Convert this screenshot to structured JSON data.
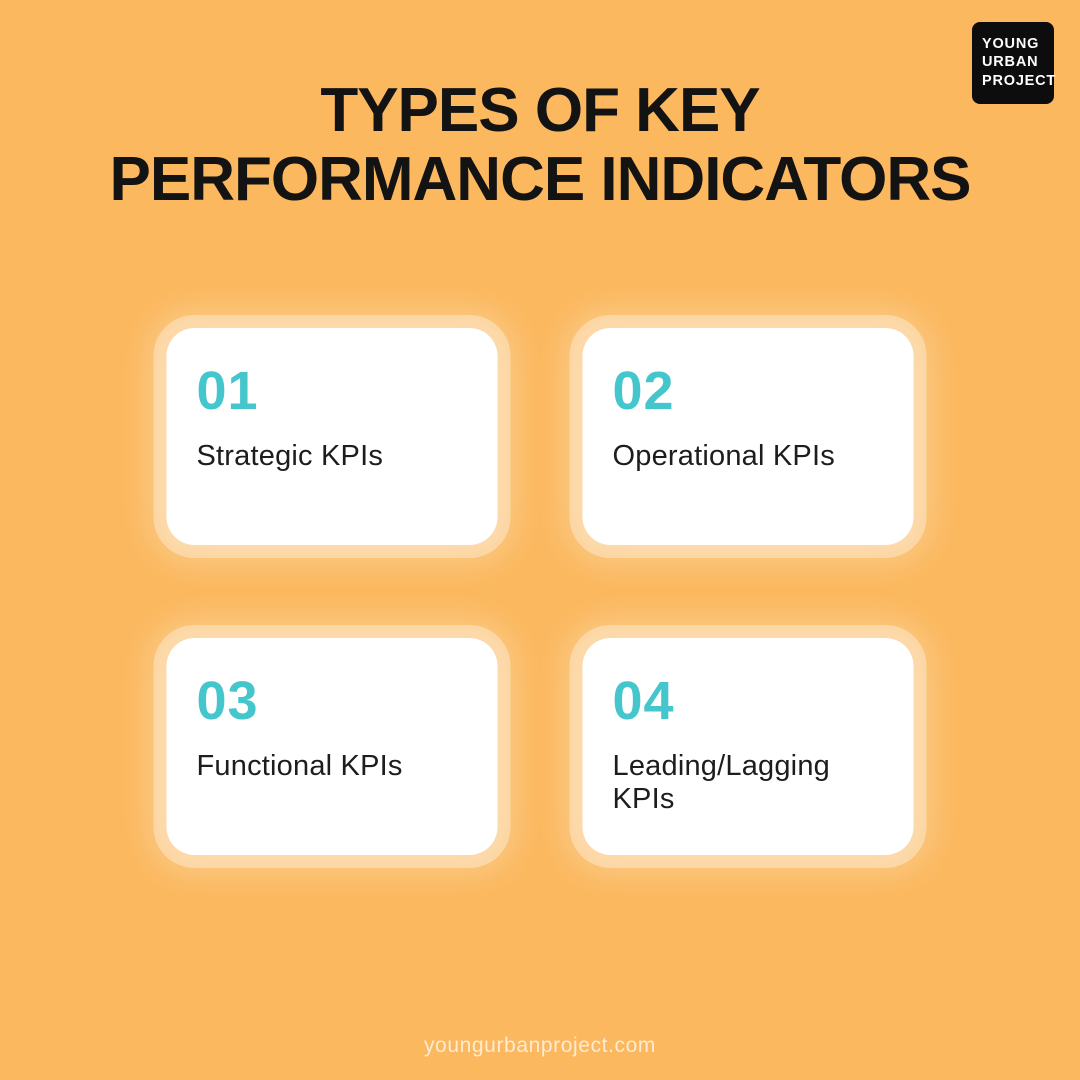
{
  "page": {
    "background_color": "#fbb85e",
    "footer_url": "youngurbanproject.com"
  },
  "logo": {
    "background_color": "#0d0d0d",
    "text_color": "#ffffff",
    "line1": "YOUNG",
    "line2": "URBAN",
    "line3": "PROJECT"
  },
  "title": {
    "line1": "TYPES OF KEY",
    "line2": "PERFORMANCE INDICATORS",
    "color": "#131313"
  },
  "colors": {
    "accent_teal": "#45c5cc",
    "card_background": "#ffffff",
    "card_text": "#1d1d1b",
    "card_halo": "rgba(255,255,255,0.33)"
  },
  "cards": [
    {
      "number": "01",
      "label": "Strategic KPIs"
    },
    {
      "number": "02",
      "label": "Operational KPIs"
    },
    {
      "number": "03",
      "label": "Functional KPIs"
    },
    {
      "number": "04",
      "label": "Leading/Lagging KPIs"
    }
  ]
}
